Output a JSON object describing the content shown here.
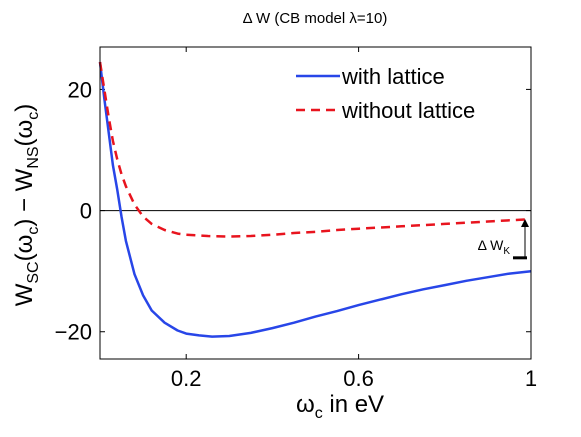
{
  "chart_data": {
    "type": "line",
    "title": "Δ W (CB model λ=10)",
    "xlabel": {
      "main": "ω",
      "sub": "c",
      "rest": " in eV"
    },
    "ylabel": {
      "parts": [
        {
          "t": "W",
          "s": "main"
        },
        {
          "t": "SC",
          "s": "sub"
        },
        {
          "t": "(ω",
          "s": "main"
        },
        {
          "t": "c",
          "s": "sub"
        },
        {
          "t": ") − W",
          "s": "main"
        },
        {
          "t": "NS",
          "s": "sub"
        },
        {
          "t": "(ω",
          "s": "main"
        },
        {
          "t": "c",
          "s": "sub"
        },
        {
          "t": ")",
          "s": "main"
        }
      ]
    },
    "xlim": [
      0,
      1
    ],
    "ylim": [
      -24.5,
      27
    ],
    "xticks": [
      0.2,
      0.6,
      1
    ],
    "xtick_labels": [
      "0.2",
      "0.6",
      "1"
    ],
    "yticks": [
      -20,
      0,
      20
    ],
    "ytick_labels": [
      "−20",
      "0",
      "20"
    ],
    "zero_line": true,
    "grid": false,
    "legend_position": "top-right",
    "series": [
      {
        "name": "with lattice",
        "color": "#2846e8",
        "style": "solid",
        "x": [
          0.0,
          0.01,
          0.02,
          0.03,
          0.04,
          0.05,
          0.06,
          0.08,
          0.1,
          0.12,
          0.15,
          0.18,
          0.2,
          0.23,
          0.26,
          0.3,
          0.35,
          0.4,
          0.45,
          0.5,
          0.55,
          0.6,
          0.65,
          0.7,
          0.75,
          0.8,
          0.85,
          0.9,
          0.95,
          1.0
        ],
        "y": [
          24.5,
          18.5,
          13.0,
          7.5,
          3.5,
          -1.0,
          -5.0,
          -10.5,
          -14.0,
          -16.5,
          -18.5,
          -19.8,
          -20.3,
          -20.6,
          -20.8,
          -20.7,
          -20.2,
          -19.4,
          -18.5,
          -17.5,
          -16.6,
          -15.6,
          -14.7,
          -13.8,
          -13.0,
          -12.3,
          -11.6,
          -11.0,
          -10.4,
          -10.0
        ]
      },
      {
        "name": "without lattice",
        "color": "#e8141e",
        "style": "dashed",
        "x": [
          0.0,
          0.01,
          0.02,
          0.03,
          0.04,
          0.05,
          0.06,
          0.08,
          0.1,
          0.12,
          0.15,
          0.18,
          0.2,
          0.25,
          0.3,
          0.35,
          0.4,
          0.45,
          0.5,
          0.55,
          0.6,
          0.65,
          0.7,
          0.75,
          0.8,
          0.85,
          0.9,
          0.95,
          1.0
        ],
        "y": [
          24.5,
          20.0,
          15.5,
          11.5,
          8.5,
          6.0,
          4.0,
          1.0,
          -1.0,
          -2.2,
          -3.2,
          -3.8,
          -4.0,
          -4.2,
          -4.3,
          -4.2,
          -4.0,
          -3.7,
          -3.5,
          -3.2,
          -3.0,
          -2.8,
          -2.6,
          -2.4,
          -2.2,
          -2.0,
          -1.8,
          -1.6,
          -1.4
        ]
      }
    ],
    "annotation": {
      "label_main": "Δ W",
      "label_sub": "K",
      "x": 1.0,
      "y_top": -1.4,
      "y_bottom": -7.8
    }
  }
}
